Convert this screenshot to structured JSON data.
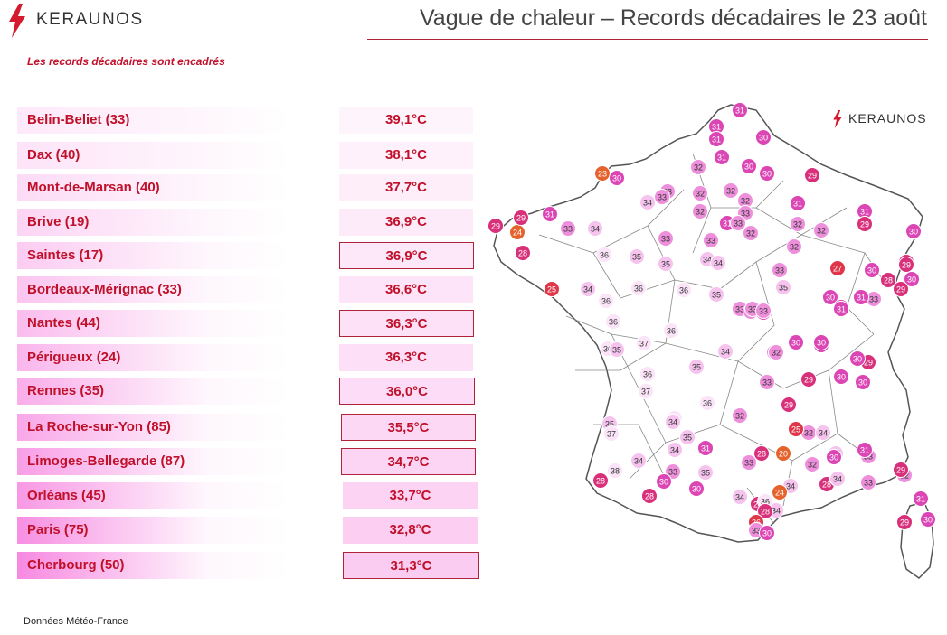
{
  "brand": {
    "name": "KERAUNOS"
  },
  "title": "Vague de chaleur – Records décadaires le 23 août",
  "subtitle": "Les records décadaires sont encadrés",
  "footer": "Données Météo-France",
  "colors": {
    "accent": "#c0102a",
    "rule": "#b0243a"
  },
  "records": [
    {
      "city": "Belin-Beliet (33)",
      "value": "39,1°C",
      "boxed": false
    },
    {
      "city": "Dax (40)",
      "value": "38,1°C",
      "boxed": false
    },
    {
      "city": "Mont-de-Marsan (40)",
      "value": "37,7°C",
      "boxed": false
    },
    {
      "city": "Brive (19)",
      "value": "36,9°C",
      "boxed": false
    },
    {
      "city": "Saintes (17)",
      "value": "36,9°C",
      "boxed": true
    },
    {
      "city": "Bordeaux-Mérignac (33)",
      "value": "36,6°C",
      "boxed": false
    },
    {
      "city": "Nantes (44)",
      "value": "36,3°C",
      "boxed": true
    },
    {
      "city": "Périgueux (24)",
      "value": "36,3°C",
      "boxed": false
    },
    {
      "city": "Rennes (35)",
      "value": "36,0°C",
      "boxed": true
    },
    {
      "city": "La Roche-sur-Yon (85)",
      "value": "35,5°C",
      "boxed": true
    },
    {
      "city": "Limoges-Bellegarde (87)",
      "value": "34,7°C",
      "boxed": true
    },
    {
      "city": "Orléans (45)",
      "value": "33,7°C",
      "boxed": false
    },
    {
      "city": "Paris (75)",
      "value": "32,8°C",
      "boxed": false
    },
    {
      "city": "Cherbourg (50)",
      "value": "31,3°C",
      "boxed": true
    }
  ],
  "map_values": [
    "31",
    "31",
    "31",
    "30",
    "31",
    "30",
    "30",
    "29",
    "23",
    "30",
    "32",
    "33",
    "33",
    "32",
    "32",
    "32",
    "34",
    "33",
    "32",
    "31",
    "33",
    "32",
    "31",
    "32",
    "31",
    "29",
    "29",
    "24",
    "29",
    "31",
    "33",
    "34",
    "33",
    "33",
    "32",
    "32",
    "30",
    "29",
    "28",
    "36",
    "35",
    "35",
    "34",
    "34",
    "33",
    "27",
    "30",
    "30",
    "29",
    "28",
    "29",
    "25",
    "34",
    "36",
    "36",
    "35",
    "35",
    "33",
    "33",
    "33",
    "30",
    "30",
    "31",
    "30",
    "36",
    "36",
    "37",
    "36",
    "33",
    "33",
    "30",
    "31",
    "30",
    "32",
    "29",
    "36",
    "35",
    "34",
    "32",
    "30",
    "30",
    "29",
    "30",
    "30",
    "36",
    "35",
    "37",
    "33",
    "29",
    "35",
    "37",
    "36",
    "36",
    "32",
    "32",
    "35",
    "34",
    "31",
    "28",
    "20",
    "25",
    "34",
    "35",
    "33",
    "38",
    "34",
    "35",
    "33",
    "34",
    "33",
    "32",
    "30",
    "31",
    "28",
    "28",
    "34",
    "34",
    "36",
    "34",
    "33",
    "32",
    "29",
    "28",
    "30",
    "30",
    "28",
    "34",
    "24",
    "28",
    "26",
    "33",
    "30",
    "29",
    "30",
    "31"
  ]
}
